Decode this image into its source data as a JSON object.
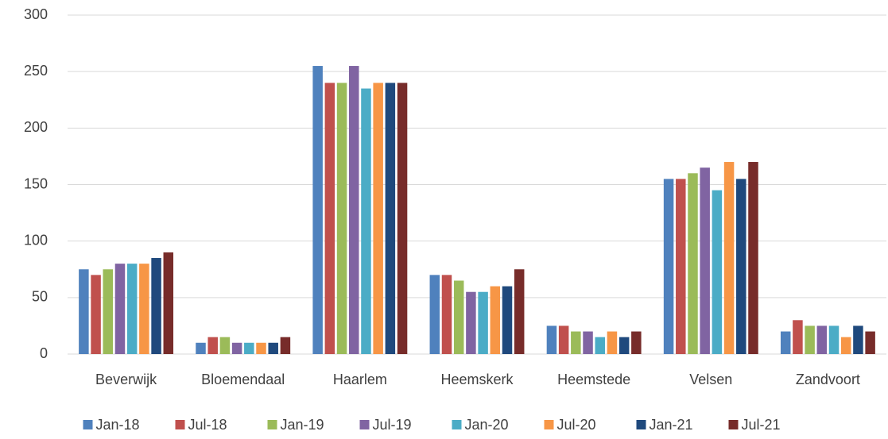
{
  "chart_data": {
    "type": "bar",
    "categories": [
      "Beverwijk",
      "Bloemendaal",
      "Haarlem",
      "Heemskerk",
      "Heemstede",
      "Velsen",
      "Zandvoort"
    ],
    "series": [
      {
        "name": "Jan-18",
        "color": "#4f81bd",
        "values": [
          75,
          10,
          255,
          70,
          25,
          155,
          20
        ]
      },
      {
        "name": "Jul-18",
        "color": "#c0504d",
        "values": [
          70,
          15,
          240,
          70,
          25,
          155,
          30
        ]
      },
      {
        "name": "Jan-19",
        "color": "#9bbb59",
        "values": [
          75,
          15,
          240,
          65,
          20,
          160,
          25
        ]
      },
      {
        "name": "Jul-19",
        "color": "#8064a2",
        "values": [
          80,
          10,
          255,
          55,
          20,
          165,
          25
        ]
      },
      {
        "name": "Jan-20",
        "color": "#4bacc6",
        "values": [
          80,
          10,
          235,
          55,
          15,
          145,
          25
        ]
      },
      {
        "name": "Jul-20",
        "color": "#f79646",
        "values": [
          80,
          10,
          240,
          60,
          20,
          170,
          15
        ]
      },
      {
        "name": "Jan-21",
        "color": "#1f497d",
        "values": [
          85,
          10,
          240,
          60,
          15,
          155,
          25
        ]
      },
      {
        "name": "Jul-21",
        "color": "#772c2a",
        "values": [
          90,
          15,
          240,
          75,
          20,
          170,
          20
        ]
      }
    ],
    "ylim": [
      0,
      300
    ],
    "yticks": [
      0,
      50,
      100,
      150,
      200,
      250,
      300
    ],
    "grid": true,
    "legend": "bottom"
  }
}
